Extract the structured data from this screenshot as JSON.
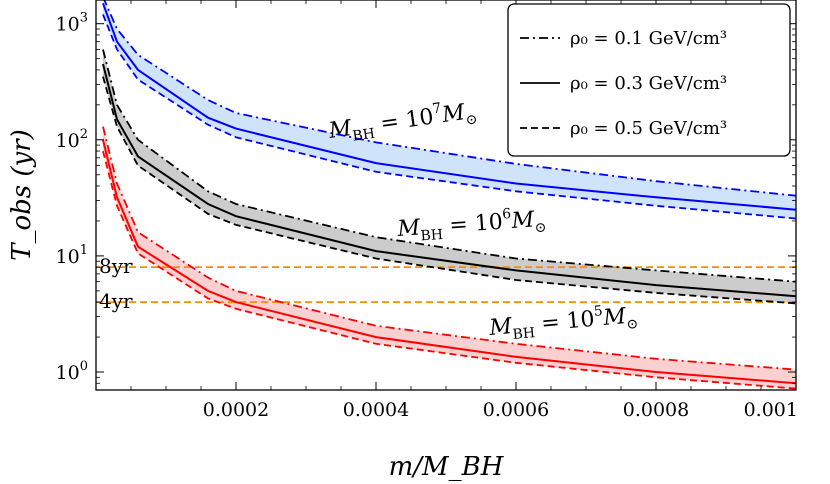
{
  "chart_data": {
    "type": "line",
    "xlabel": "m/M_BH",
    "ylabel": "T_obs (yr)",
    "y_scale": "log",
    "xlim": [
      0,
      0.001
    ],
    "ylim": [
      0.7,
      1600
    ],
    "grid": false,
    "legend_position": "top-right",
    "x_ticks": [
      {
        "value": 0.0002,
        "label": "0.0002"
      },
      {
        "value": 0.0004,
        "label": "0.0004"
      },
      {
        "value": 0.0006,
        "label": "0.0006"
      },
      {
        "value": 0.0008,
        "label": "0.0008"
      },
      {
        "value": 0.001,
        "label": "0.001"
      }
    ],
    "y_ticks": [
      {
        "value": 1,
        "base": "10",
        "exp": "0"
      },
      {
        "value": 10,
        "base": "10",
        "exp": "1"
      },
      {
        "value": 100,
        "base": "10",
        "exp": "2"
      },
      {
        "value": 1000,
        "base": "10",
        "exp": "3"
      }
    ],
    "legend": [
      {
        "style": "dashdot",
        "text": "ρ₀ = 0.1 GeV/cm³"
      },
      {
        "style": "solid",
        "text": "ρ₀ = 0.3 GeV/cm³"
      },
      {
        "style": "dashed",
        "text": "ρ₀ = 0.5 GeV/cm³"
      }
    ],
    "hlines": [
      {
        "y": 8,
        "label": "8yr",
        "color": "#ff8c00"
      },
      {
        "y": 4,
        "label": "4yr",
        "color": "#ff8c00"
      }
    ],
    "groups": [
      {
        "label": "M_BH = 10⁷ M_⊙",
        "color": "#0000ff",
        "fill": "#cfe3fb",
        "series": [
          {
            "style": "dashdot",
            "x": [
              1e-05,
              3e-05,
              6e-05,
              0.00016,
              0.0002,
              0.0004,
              0.0006,
              0.0008,
              0.001
            ],
            "y": [
              1700,
              900,
              540,
              220,
              170,
              95,
              62,
              44,
              33
            ]
          },
          {
            "style": "solid",
            "x": [
              1e-05,
              3e-05,
              6e-05,
              0.00016,
              0.0002,
              0.0004,
              0.0006,
              0.0008,
              0.001
            ],
            "y": [
              1500,
              700,
              400,
              155,
              125,
              63,
              42,
              32,
              25
            ]
          },
          {
            "style": "dashed",
            "x": [
              1e-05,
              3e-05,
              6e-05,
              0.00016,
              0.0002,
              0.0004,
              0.0006,
              0.0008,
              0.001
            ],
            "y": [
              1200,
              600,
              330,
              135,
              105,
              53,
              36,
              27,
              21
            ]
          }
        ]
      },
      {
        "label": "M_BH = 10⁶ M_⊙",
        "color": "#000000",
        "fill": "#cccccc",
        "series": [
          {
            "style": "dashdot",
            "x": [
              1e-05,
              3e-05,
              6e-05,
              0.00016,
              0.0002,
              0.0004,
              0.0006,
              0.0008,
              0.001
            ],
            "y": [
              600,
              200,
              100,
              36,
              28,
              14.5,
              9.5,
              7.5,
              6
            ]
          },
          {
            "style": "solid",
            "x": [
              1e-05,
              3e-05,
              6e-05,
              0.00016,
              0.0002,
              0.0004,
              0.0006,
              0.0008,
              0.001
            ],
            "y": [
              450,
              150,
              72,
              28,
              22,
              11,
              7.5,
              5.6,
              4.5
            ]
          },
          {
            "style": "dashed",
            "x": [
              1e-05,
              3e-05,
              6e-05,
              0.00016,
              0.0002,
              0.0004,
              0.0006,
              0.0008,
              0.001
            ],
            "y": [
              350,
              130,
              60,
              23,
              18.5,
              9.5,
              6.2,
              4.8,
              3.9
            ]
          }
        ]
      },
      {
        "label": "M_BH = 10⁵ M_⊙",
        "color": "#ff0000",
        "fill": "#fbd0d0",
        "series": [
          {
            "style": "dashdot",
            "x": [
              1e-05,
              3e-05,
              6e-05,
              0.00016,
              0.0002,
              0.0004,
              0.0006,
              0.0008,
              0.001
            ],
            "y": [
              130,
              42,
              16,
              6.5,
              5,
              2.5,
              1.75,
              1.3,
              1.05
            ]
          },
          {
            "style": "solid",
            "x": [
              1e-05,
              3e-05,
              6e-05,
              0.00016,
              0.0002,
              0.0004,
              0.0006,
              0.0008,
              0.001
            ],
            "y": [
              100,
              32,
              12,
              5,
              4,
              2,
              1.35,
              1,
              0.8
            ]
          },
          {
            "style": "dashed",
            "x": [
              1e-05,
              3e-05,
              6e-05,
              0.00016,
              0.0002,
              0.0004,
              0.0006,
              0.0008,
              0.001
            ],
            "y": [
              80,
              27,
              10.5,
              4.3,
              3.5,
              1.75,
              1.2,
              0.9,
              0.72
            ]
          }
        ]
      }
    ]
  }
}
